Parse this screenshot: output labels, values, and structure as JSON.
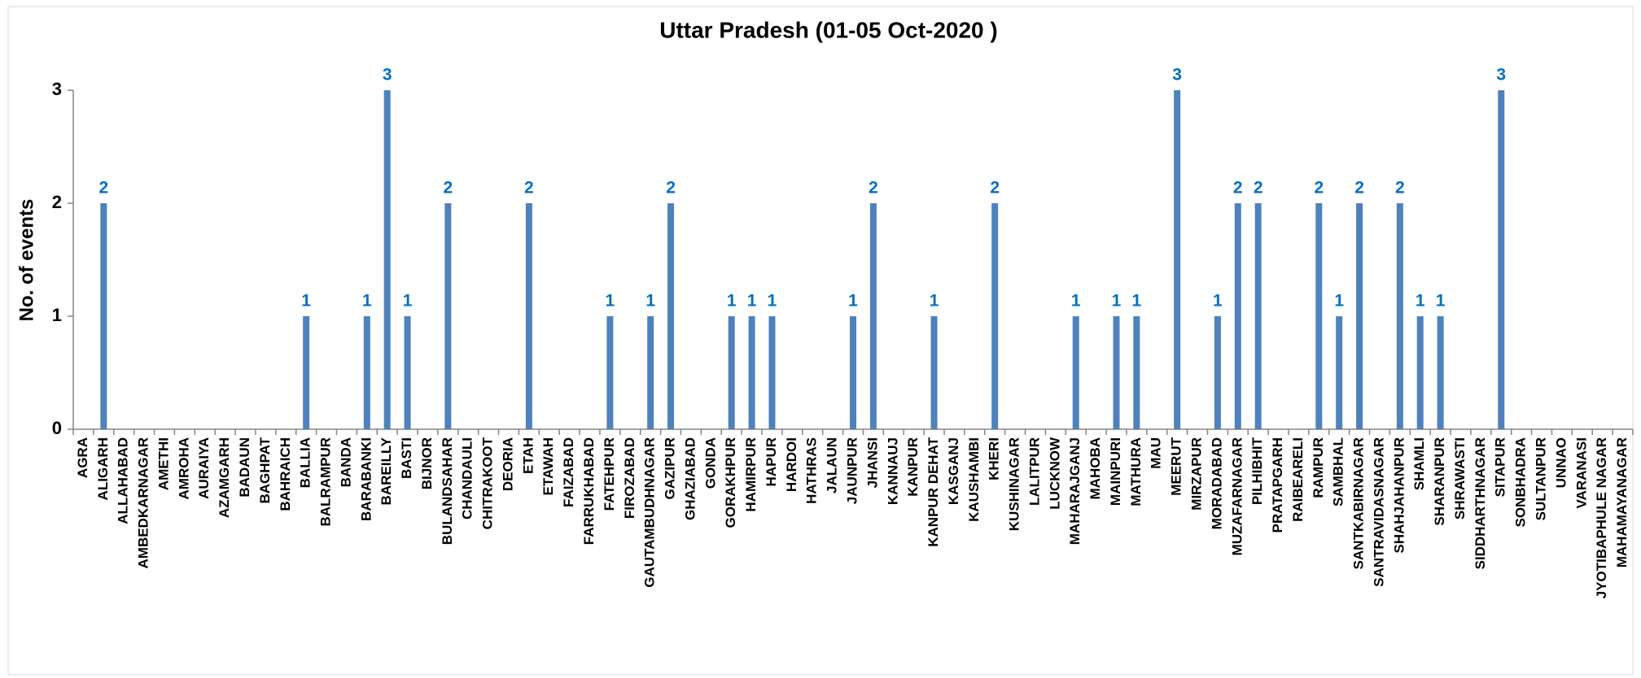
{
  "chart_data": {
    "type": "bar",
    "title": "Uttar Pradesh  (01-05 Oct-2020 )",
    "ylabel": "No. of events",
    "categories": [
      "AGRA",
      "ALIGARH",
      "ALLAHABAD",
      "AMBEDKARNAGAR",
      "AMETHI",
      "AMROHA",
      "AURAIYA",
      "AZAMGARH",
      "BADAUN",
      "BAGHPAT",
      "BAHRAICH",
      "BALLIA",
      "BALRAMPUR",
      "BANDA",
      "BARABANKI",
      "BAREILLY",
      "BASTI",
      "BIJNOR",
      "BULANDSAHAR",
      "CHANDAULI",
      "CHITRAKOOT",
      "DEORIA",
      "ETAH",
      "ETAWAH",
      "FAIZABAD",
      "FARRUKHABAD",
      "FATEHPUR",
      "FIROZABAD",
      "GAUTAMBUDHNAGAR",
      "GAZIPUR",
      "GHAZIABAD",
      "GONDA",
      "GORAKHPUR",
      "HAMIRPUR",
      "HAPUR",
      "HARDOI",
      "HATHRAS",
      "JALAUN",
      "JAUNPUR",
      "JHANSI",
      "KANNAUJ",
      "KANPUR",
      "KANPUR DEHAT",
      "KASGANJ",
      "KAUSHAMBI",
      "KHERI",
      "KUSHINAGAR",
      "LALITPUR",
      "LUCKNOW",
      "MAHARAJGANJ",
      "MAHOBA",
      "MAINPURI",
      "MATHURA",
      "MAU",
      "MEERUT",
      "MIRZAPUR",
      "MORADABAD",
      "MUZAFARNAGAR",
      "PILHIBHIT",
      "PRATAPGARH",
      "RAIBEARELI",
      "RAMPUR",
      "SAMBHAL",
      "SANTKABIRNAGAR",
      "SANTRAVIDASNAGAR",
      "SHAHJAHANPUR",
      "SHAMLI",
      "SHARANPUR",
      "SHRAWASTI",
      "SIDDHARTHNAGAR",
      "SITAPUR",
      "SONBHADRA",
      "SULTANPUR",
      "UNNAO",
      "VARANASI",
      "JYOTIBAPHULE NAGAR",
      "MAHAMAYANAGAR"
    ],
    "values": [
      0,
      2,
      0,
      0,
      0,
      0,
      0,
      0,
      0,
      0,
      0,
      1,
      0,
      0,
      1,
      3,
      1,
      0,
      2,
      0,
      0,
      0,
      2,
      0,
      0,
      0,
      1,
      0,
      1,
      2,
      0,
      0,
      1,
      1,
      1,
      0,
      0,
      0,
      1,
      2,
      0,
      0,
      1,
      0,
      0,
      2,
      0,
      0,
      0,
      1,
      0,
      1,
      1,
      0,
      3,
      0,
      1,
      2,
      2,
      0,
      0,
      2,
      1,
      2,
      0,
      2,
      1,
      1,
      0,
      0,
      3,
      0,
      0,
      0,
      0,
      0,
      0
    ],
    "color": "#4f81bd",
    "label_color": "#0070c0",
    "ylim": [
      0,
      3
    ],
    "yticks": [
      0,
      1,
      2,
      3
    ],
    "grid": false
  }
}
